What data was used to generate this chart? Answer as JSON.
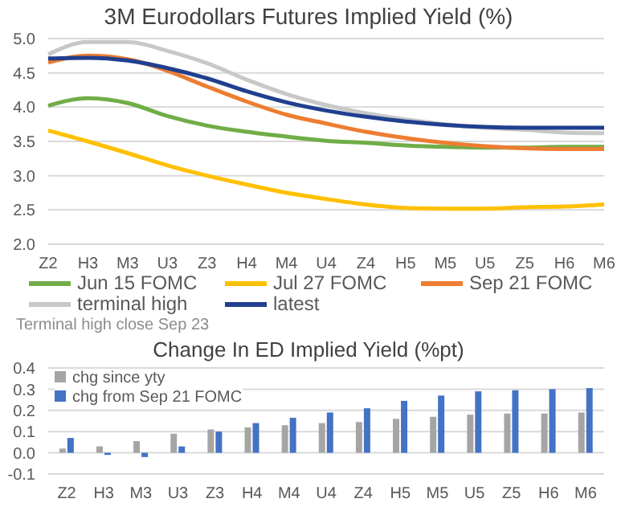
{
  "chart_data": [
    {
      "type": "line",
      "title": "3M Eurodollars Futures Implied Yield (%)",
      "categories": [
        "Z2",
        "H3",
        "M3",
        "U3",
        "Z3",
        "H4",
        "M4",
        "U4",
        "Z4",
        "H5",
        "M5",
        "U5",
        "Z5",
        "H6",
        "M6"
      ],
      "ylim": [
        2.0,
        5.0
      ],
      "yticks": [
        {
          "value": 2.0,
          "label": "2.0"
        },
        {
          "value": 2.5,
          "label": "2.5"
        },
        {
          "value": 3.0,
          "label": "3.0"
        },
        {
          "value": 3.5,
          "label": "3.5"
        },
        {
          "value": 4.0,
          "label": "4.0"
        },
        {
          "value": 4.5,
          "label": "4.5"
        },
        {
          "value": 5.0,
          "label": "5.0"
        }
      ],
      "grid": "y",
      "legend": "bottom",
      "annotations": [
        "Terminal high close Sep 23"
      ],
      "series": [
        {
          "name": "Jun 15 FOMC",
          "color": "#70ad47",
          "values": [
            4.02,
            4.13,
            4.06,
            3.87,
            3.73,
            3.64,
            3.57,
            3.51,
            3.48,
            3.44,
            3.42,
            3.41,
            3.41,
            3.42,
            3.42
          ]
        },
        {
          "name": "Jul 27 FOMC",
          "color": "#ffc000",
          "values": [
            3.66,
            3.5,
            3.33,
            3.15,
            3.0,
            2.87,
            2.75,
            2.66,
            2.58,
            2.53,
            2.52,
            2.52,
            2.54,
            2.55,
            2.58
          ]
        },
        {
          "name": "Sep 21 FOMC",
          "color": "#ed7d31",
          "values": [
            4.65,
            4.75,
            4.7,
            4.53,
            4.3,
            4.08,
            3.89,
            3.76,
            3.64,
            3.55,
            3.48,
            3.43,
            3.4,
            3.39,
            3.39
          ]
        },
        {
          "name": "terminal high",
          "color": "#c8c8c8",
          "values": [
            4.77,
            4.95,
            4.95,
            4.82,
            4.64,
            4.4,
            4.19,
            4.03,
            3.91,
            3.82,
            3.75,
            3.7,
            3.67,
            3.63,
            3.62
          ]
        },
        {
          "name": "latest",
          "color": "#203f8f",
          "values": [
            4.71,
            4.72,
            4.68,
            4.57,
            4.42,
            4.23,
            4.07,
            3.95,
            3.86,
            3.79,
            3.74,
            3.71,
            3.7,
            3.7,
            3.7
          ]
        }
      ]
    },
    {
      "type": "bar",
      "title": "Change In ED Implied Yield (%pt)",
      "categories": [
        "Z2",
        "H3",
        "M3",
        "U3",
        "Z3",
        "H4",
        "M4",
        "U4",
        "Z4",
        "H5",
        "M5",
        "U5",
        "Z5",
        "H6",
        "M6"
      ],
      "ylim": [
        -0.1,
        0.4
      ],
      "yticks": [
        {
          "value": -0.1,
          "label": "-0.1"
        },
        {
          "value": 0,
          "label": "0.0"
        },
        {
          "value": 0.1,
          "label": "0.1"
        },
        {
          "value": 0.2,
          "label": "0.2"
        },
        {
          "value": 0.3,
          "label": "0.3"
        },
        {
          "value": 0.4,
          "label": "0.4"
        }
      ],
      "grid": "y",
      "legend": "top left",
      "series": [
        {
          "name": "chg since yty",
          "color": "#a5a5a5",
          "values": [
            0.02,
            0.03,
            0.055,
            0.09,
            0.11,
            0.12,
            0.13,
            0.14,
            0.145,
            0.16,
            0.17,
            0.18,
            0.185,
            0.185,
            0.19
          ]
        },
        {
          "name": "chg from Sep 21 FOMC",
          "color": "#4472c4",
          "values": [
            0.07,
            -0.01,
            -0.02,
            0.03,
            0.1,
            0.14,
            0.165,
            0.19,
            0.21,
            0.245,
            0.27,
            0.29,
            0.295,
            0.3,
            0.305
          ]
        }
      ]
    }
  ]
}
